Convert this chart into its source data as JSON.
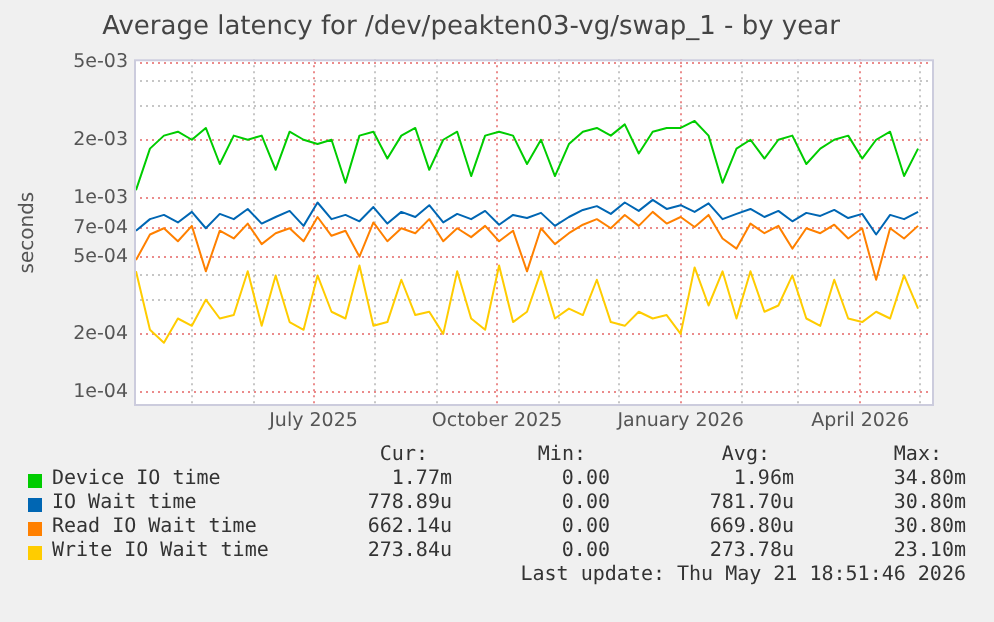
{
  "chart_data": {
    "type": "line",
    "title": "Average latency for /dev/peakten03-vg/swap_1 - by year",
    "ylabel": "seconds",
    "log": "y",
    "grid": true,
    "legend": "bottom",
    "ylim": [
      8.5e-05,
      0.0052
    ],
    "yticks": [
      {
        "value": 0.0001,
        "label": "1e-04"
      },
      {
        "value": 0.0002,
        "label": "2e-04"
      },
      {
        "value": 0.0003,
        "label": null
      },
      {
        "value": 0.0004,
        "label": null
      },
      {
        "value": 0.0005,
        "label": "5e-04"
      },
      {
        "value": 0.0007,
        "label": "7e-04"
      },
      {
        "value": 0.001,
        "label": "1e-03"
      },
      {
        "value": 0.002,
        "label": "2e-03"
      },
      {
        "value": 0.003,
        "label": null
      },
      {
        "value": 0.004,
        "label": null
      },
      {
        "value": 0.005,
        "label": "5e-03"
      }
    ],
    "xlim": [
      "2025-04-02",
      "2026-05-08"
    ],
    "xticks": [
      {
        "value": "2025-05-01",
        "label": null
      },
      {
        "value": "2025-06-01",
        "label": null
      },
      {
        "value": "2025-07-01",
        "label": "July 2025"
      },
      {
        "value": "2025-08-01",
        "label": null
      },
      {
        "value": "2025-09-01",
        "label": null
      },
      {
        "value": "2025-10-01",
        "label": "October 2025"
      },
      {
        "value": "2025-11-01",
        "label": null
      },
      {
        "value": "2025-12-01",
        "label": null
      },
      {
        "value": "2026-01-01",
        "label": "January 2026"
      },
      {
        "value": "2026-02-01",
        "label": null
      },
      {
        "value": "2026-03-01",
        "label": null
      },
      {
        "value": "2026-04-01",
        "label": "April 2026"
      },
      {
        "value": "2026-05-01",
        "label": null
      }
    ],
    "x": [
      "2025-04-03",
      "2025-04-10",
      "2025-04-17",
      "2025-04-24",
      "2025-05-01",
      "2025-05-08",
      "2025-05-15",
      "2025-05-22",
      "2025-05-29",
      "2025-06-05",
      "2025-06-12",
      "2025-06-19",
      "2025-06-26",
      "2025-07-03",
      "2025-07-10",
      "2025-07-17",
      "2025-07-24",
      "2025-07-31",
      "2025-08-07",
      "2025-08-14",
      "2025-08-21",
      "2025-08-28",
      "2025-09-04",
      "2025-09-11",
      "2025-09-18",
      "2025-09-25",
      "2025-10-02",
      "2025-10-09",
      "2025-10-16",
      "2025-10-23",
      "2025-10-30",
      "2025-11-06",
      "2025-11-13",
      "2025-11-20",
      "2025-11-27",
      "2025-12-04",
      "2025-12-11",
      "2025-12-18",
      "2025-12-25",
      "2026-01-01",
      "2026-01-08",
      "2026-01-15",
      "2026-01-22",
      "2026-01-29",
      "2026-02-05",
      "2026-02-12",
      "2026-02-19",
      "2026-02-26",
      "2026-03-05",
      "2026-03-12",
      "2026-03-19",
      "2026-03-26",
      "2026-04-02",
      "2026-04-09",
      "2026-04-16",
      "2026-04-23",
      "2026-04-30"
    ],
    "series": [
      {
        "name": "Device IO time",
        "color": "#00cc00",
        "values": [
          0.0011,
          0.0018,
          0.0021,
          0.0022,
          0.002,
          0.0023,
          0.0015,
          0.0021,
          0.002,
          0.0021,
          0.0014,
          0.0022,
          0.002,
          0.0019,
          0.002,
          0.0012,
          0.0021,
          0.0022,
          0.0016,
          0.0021,
          0.0023,
          0.0014,
          0.002,
          0.0022,
          0.0013,
          0.0021,
          0.0022,
          0.0021,
          0.0015,
          0.002,
          0.0013,
          0.0019,
          0.0022,
          0.0023,
          0.0021,
          0.0024,
          0.0017,
          0.0022,
          0.0023,
          0.0023,
          0.0025,
          0.0021,
          0.0012,
          0.0018,
          0.002,
          0.0016,
          0.002,
          0.0021,
          0.0015,
          0.0018,
          0.002,
          0.0021,
          0.0016,
          0.002,
          0.0022,
          0.0013,
          0.0018
        ]
      },
      {
        "name": "IO Wait time",
        "color": "#0066b3",
        "values": [
          0.00068,
          0.00078,
          0.00082,
          0.00075,
          0.00085,
          0.0007,
          0.00083,
          0.00078,
          0.00088,
          0.00074,
          0.0008,
          0.00086,
          0.00072,
          0.00095,
          0.00078,
          0.00082,
          0.00076,
          0.0009,
          0.00074,
          0.00085,
          0.0008,
          0.00092,
          0.00075,
          0.00083,
          0.00078,
          0.00086,
          0.00073,
          0.00082,
          0.00079,
          0.00084,
          0.00072,
          0.0008,
          0.00087,
          0.00091,
          0.00083,
          0.00095,
          0.00086,
          0.00098,
          0.00088,
          0.00092,
          0.00085,
          0.00094,
          0.00078,
          0.00083,
          0.00088,
          0.0008,
          0.00086,
          0.00076,
          0.00084,
          0.00081,
          0.00087,
          0.00079,
          0.00083,
          0.00065,
          0.00082,
          0.00078,
          0.00085
        ]
      },
      {
        "name": "Read IO Wait time",
        "color": "#ff8000",
        "values": [
          0.00048,
          0.00065,
          0.0007,
          0.0006,
          0.00072,
          0.00042,
          0.00068,
          0.00062,
          0.00074,
          0.00058,
          0.00066,
          0.0007,
          0.0006,
          0.0008,
          0.00064,
          0.00068,
          0.0005,
          0.00075,
          0.0006,
          0.0007,
          0.00066,
          0.00078,
          0.0006,
          0.0007,
          0.00063,
          0.00072,
          0.0006,
          0.00068,
          0.00042,
          0.0007,
          0.00058,
          0.00066,
          0.00073,
          0.00078,
          0.0007,
          0.00082,
          0.00072,
          0.00085,
          0.00074,
          0.0008,
          0.00071,
          0.00082,
          0.00062,
          0.00055,
          0.00074,
          0.00066,
          0.00072,
          0.00055,
          0.0007,
          0.00066,
          0.00073,
          0.00062,
          0.0007,
          0.00038,
          0.0007,
          0.00062,
          0.00072
        ]
      },
      {
        "name": "Write IO Wait time",
        "color": "#ffcc00",
        "values": [
          0.00042,
          0.00021,
          0.00018,
          0.00024,
          0.00022,
          0.0003,
          0.00024,
          0.00025,
          0.00042,
          0.00022,
          0.0004,
          0.00023,
          0.00021,
          0.0004,
          0.00026,
          0.00024,
          0.00045,
          0.00022,
          0.00023,
          0.00038,
          0.00025,
          0.00026,
          0.0002,
          0.00042,
          0.00024,
          0.00021,
          0.00045,
          0.00023,
          0.00026,
          0.00042,
          0.00024,
          0.00027,
          0.00025,
          0.00038,
          0.00023,
          0.00022,
          0.00026,
          0.00024,
          0.00025,
          0.0002,
          0.00044,
          0.00028,
          0.00042,
          0.00024,
          0.00042,
          0.00026,
          0.00028,
          0.0004,
          0.00024,
          0.00022,
          0.00038,
          0.00024,
          0.00023,
          0.00026,
          0.00024,
          0.0004,
          0.00027
        ]
      }
    ],
    "annotations": [
      "Cur:",
      "Min:",
      "Avg:",
      "Max:",
      "1.77m",
      "0.00",
      "1.96m",
      "34.80m",
      "778.89u",
      "0.00",
      "781.70u",
      "30.80m",
      "662.14u",
      "0.00",
      "669.80u",
      "30.80m",
      "273.84u",
      "0.00",
      "273.78u",
      "23.10m",
      "Last update: Thu May 21 18:51:46 2026"
    ]
  }
}
